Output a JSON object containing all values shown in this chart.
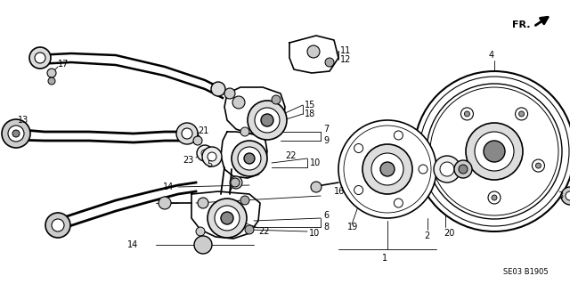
{
  "bg_color": "#ffffff",
  "fig_width": 6.4,
  "fig_height": 3.19,
  "dpi": 100,
  "diagram_code": "SE03 B1905",
  "fr_label": "FR.",
  "lw": 1.0,
  "lw_thin": 0.6,
  "lw_thick": 1.5,
  "gray_fill": "#c8c8c8",
  "dark_fill": "#888888",
  "mid_fill": "#aaaaaa"
}
